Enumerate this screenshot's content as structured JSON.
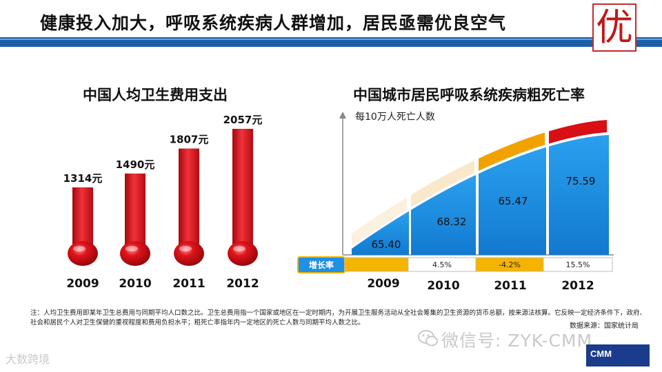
{
  "header": {
    "title": "健康投入加大，呼吸系统疾病人群增加，居民亟需优良空气",
    "logo_char": "优"
  },
  "chart_data": [
    {
      "type": "bar",
      "title": "中国人均卫生费用支出",
      "categories": [
        "2009",
        "2010",
        "2011",
        "2012"
      ],
      "values": [
        1314,
        1490,
        1807,
        2057
      ],
      "value_labels": [
        "1314元",
        "1490元",
        "1807元",
        "2057元"
      ],
      "unit": "元",
      "style": "thermometer",
      "color": "#e0141b"
    },
    {
      "type": "area",
      "title": "中国城市居民呼吸系统疾病粗死亡率",
      "ylabel": "每10万人死亡人数",
      "categories": [
        "2009",
        "2010",
        "2011",
        "2012"
      ],
      "values": [
        65.4,
        68.32,
        65.47,
        75.59
      ],
      "value_labels": [
        "65.40",
        "68.32",
        "65.47",
        "75.59"
      ],
      "growth_label": "增长率",
      "growth_rates": [
        "",
        "4.5%",
        "-4.2%",
        "15.5%"
      ],
      "color": "#1e90e6"
    }
  ],
  "footer": {
    "note": "注：人均卫生费用即某年卫生总费用与同期平均人口数之比。卫生总费用指一个国家或地区在一定时期内，为开展卫生服务活动从全社会筹集的卫生资源的货币总额，按来源法核算。它反映一定经济条件下，政府、社会和居民个人对卫生保健的重视程度和费用负担水平；粗死亡率指年内一定地区的死亡人数与同期平均人数之比。",
    "source": "数据来源：国家统计局",
    "wechat": "微信号: ZYK-CMM",
    "watermark": "大数跨境",
    "cmm_logo": "CMM"
  },
  "colors": {
    "brand_blue": "#1c5fa8",
    "thermo_red": "#e0141b",
    "area_blue": "#1e90e6",
    "growth_orange": "#f5a800"
  }
}
